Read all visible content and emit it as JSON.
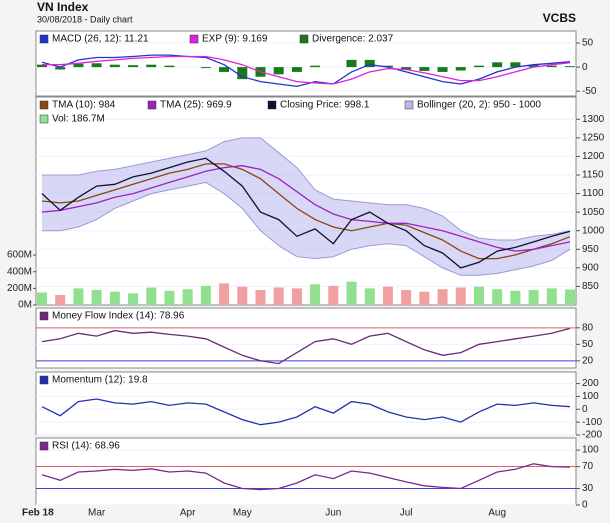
{
  "header": {
    "title": "VN Index",
    "subtitle": "30/08/2018 - Daily chart",
    "brand": "VCBS"
  },
  "chart_data": [
    {
      "type": "macd",
      "ylim": [
        -60,
        75
      ],
      "yticks": [
        -50,
        0,
        50
      ],
      "series": [
        {
          "name": "MACD (26, 12): 11.21",
          "color": "#2233cc",
          "values": [
            10,
            0,
            15,
            20,
            20,
            22,
            25,
            25,
            22,
            20,
            5,
            -20,
            -30,
            -35,
            -40,
            -30,
            -35,
            -10,
            5,
            0,
            -10,
            -20,
            -30,
            -35,
            -25,
            -10,
            0,
            5,
            8,
            11.21
          ]
        },
        {
          "name": "EXP (9): 9.169",
          "color": "#e020e0",
          "values": [
            5,
            5,
            8,
            12,
            15,
            18,
            20,
            22,
            22,
            22,
            15,
            5,
            -10,
            -20,
            -30,
            -33,
            -35,
            -25,
            -10,
            -3,
            -5,
            -12,
            -20,
            -28,
            -28,
            -20,
            -10,
            0,
            5,
            9.169
          ]
        },
        {
          "name": "Divergence: 2.037",
          "color": "#1a7a1a",
          "kind": "bar",
          "values": [
            5,
            -5,
            7,
            8,
            5,
            4,
            5,
            3,
            0,
            -2,
            -10,
            -25,
            -20,
            -15,
            -10,
            3,
            0,
            15,
            15,
            3,
            -5,
            -8,
            -10,
            -7,
            3,
            10,
            10,
            5,
            3,
            2.037
          ]
        }
      ]
    },
    {
      "type": "price",
      "ylim": [
        800,
        1360
      ],
      "yticks": [
        850,
        900,
        950,
        1000,
        1050,
        1100,
        1150,
        1200,
        1250,
        1300
      ],
      "y2lim": [
        0,
        2500
      ],
      "y2ticks": [
        {
          "value": 0,
          "label": "0M"
        },
        {
          "value": 200,
          "label": "200M"
        },
        {
          "value": 400,
          "label": "400M"
        },
        {
          "value": 600,
          "label": "600M"
        }
      ],
      "series": [
        {
          "name": "TMA (10): 984",
          "color": "#8b4513",
          "values": [
            1080,
            1075,
            1080,
            1095,
            1110,
            1125,
            1140,
            1155,
            1165,
            1180,
            1180,
            1165,
            1140,
            1100,
            1060,
            1030,
            1010,
            1000,
            1010,
            1020,
            1015,
            995,
            975,
            945,
            925,
            925,
            935,
            950,
            965,
            984
          ]
        },
        {
          "name": "TMA (25): 969.9",
          "color": "#a020c0",
          "values": [
            1050,
            1055,
            1065,
            1075,
            1090,
            1100,
            1115,
            1130,
            1145,
            1160,
            1170,
            1175,
            1165,
            1140,
            1105,
            1070,
            1045,
            1030,
            1025,
            1020,
            1020,
            1010,
            1000,
            985,
            970,
            955,
            945,
            950,
            960,
            969.9
          ]
        },
        {
          "name": "Closing Price: 998.1",
          "color": "#101030",
          "values": [
            1100,
            1055,
            1090,
            1120,
            1125,
            1145,
            1155,
            1170,
            1185,
            1195,
            1160,
            1120,
            1050,
            1030,
            985,
            1005,
            965,
            1030,
            1050,
            1020,
            1000,
            960,
            940,
            900,
            915,
            945,
            955,
            970,
            985,
            998.1
          ]
        },
        {
          "name": "Bollinger (20, 2): 950 - 1000",
          "color": "#b8b8ee",
          "kind": "band",
          "upper": [
            1150,
            1150,
            1150,
            1160,
            1165,
            1175,
            1185,
            1195,
            1205,
            1215,
            1240,
            1250,
            1250,
            1210,
            1170,
            1110,
            1085,
            1080,
            1075,
            1070,
            1070,
            1060,
            1040,
            1000,
            980,
            975,
            975,
            985,
            990,
            1000
          ],
          "lower": [
            1000,
            1000,
            1010,
            1030,
            1060,
            1080,
            1100,
            1110,
            1120,
            1130,
            1100,
            1060,
            1000,
            960,
            930,
            925,
            930,
            950,
            960,
            965,
            960,
            930,
            900,
            880,
            880,
            885,
            895,
            905,
            920,
            950
          ]
        },
        {
          "name": "Vol: 186.7M",
          "color": "#90e090",
          "down_color": "#f0a0a0",
          "kind": "bar",
          "axis": "y2",
          "values": [
            150,
            120,
            200,
            180,
            160,
            140,
            210,
            170,
            190,
            230,
            260,
            220,
            180,
            210,
            200,
            250,
            230,
            280,
            200,
            220,
            180,
            160,
            190,
            210,
            220,
            190,
            170,
            180,
            200,
            186.7
          ]
        }
      ]
    },
    {
      "type": "oscillator",
      "ylim": [
        7,
        116
      ],
      "yticks": [
        20,
        50,
        80
      ],
      "ref_lines": [
        {
          "value": 80,
          "color": "#e06060"
        },
        {
          "value": 20,
          "color": "#4040e0"
        }
      ],
      "series": [
        {
          "name": "Money Flow Index (14): 78.96",
          "color": "#6a2a7a",
          "values": [
            55,
            60,
            70,
            65,
            75,
            70,
            72,
            68,
            65,
            60,
            45,
            30,
            20,
            15,
            35,
            55,
            60,
            50,
            65,
            70,
            55,
            40,
            30,
            35,
            50,
            55,
            60,
            65,
            70,
            78.96
          ]
        }
      ]
    },
    {
      "type": "oscillator",
      "ylim": [
        -200,
        290
      ],
      "yticks": [
        -200,
        -100,
        0,
        100,
        200
      ],
      "series": [
        {
          "name": "Momentum (12): 19.8",
          "color": "#2233aa",
          "values": [
            20,
            -50,
            60,
            80,
            50,
            40,
            60,
            30,
            50,
            40,
            -20,
            -80,
            -120,
            -100,
            -60,
            20,
            -30,
            60,
            40,
            -20,
            -60,
            -80,
            -60,
            -100,
            -20,
            40,
            30,
            50,
            30,
            19.8
          ]
        }
      ]
    },
    {
      "type": "oscillator",
      "ylim": [
        0,
        122
      ],
      "yticks": [
        0,
        30,
        70,
        100
      ],
      "ref_lines": [
        {
          "value": 70,
          "color": "#e06060"
        },
        {
          "value": 30,
          "color": "#4040e0"
        }
      ],
      "categories": [
        "Feb 18",
        null,
        null,
        "Mar",
        null,
        null,
        null,
        null,
        "Apr",
        null,
        null,
        "May",
        null,
        null,
        null,
        null,
        "Jun",
        null,
        null,
        null,
        "Jul",
        null,
        null,
        null,
        null,
        "Aug",
        null,
        null,
        null,
        null
      ],
      "series": [
        {
          "name": "RSI (14): 68.96",
          "color": "#7a2a8a",
          "values": [
            55,
            45,
            60,
            62,
            65,
            63,
            66,
            60,
            62,
            58,
            40,
            30,
            28,
            30,
            40,
            55,
            48,
            62,
            58,
            50,
            42,
            35,
            32,
            30,
            45,
            60,
            65,
            75,
            70,
            68.96
          ]
        }
      ]
    }
  ]
}
